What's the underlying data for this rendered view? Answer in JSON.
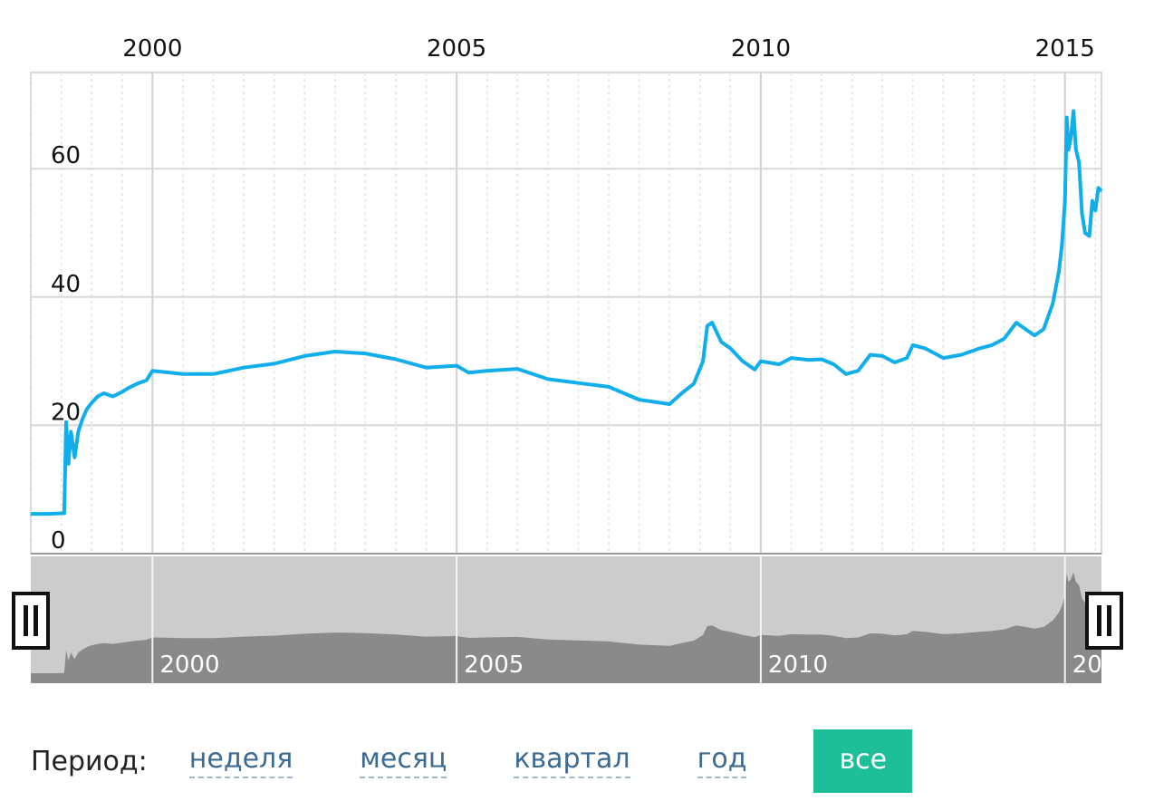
{
  "chart_data": {
    "type": "line",
    "x_ticks": [
      "2000",
      "2005",
      "2010",
      "2015"
    ],
    "y_ticks": [
      0,
      20,
      40,
      60
    ],
    "ylim": [
      0,
      75
    ],
    "xlim": [
      1998.0,
      2015.6
    ],
    "grid": true,
    "series": [
      {
        "color": "#10aeea",
        "points": [
          [
            1998.0,
            6.2
          ],
          [
            1998.3,
            6.2
          ],
          [
            1998.55,
            6.3
          ],
          [
            1998.58,
            20.5
          ],
          [
            1998.62,
            14
          ],
          [
            1998.66,
            19
          ],
          [
            1998.72,
            15
          ],
          [
            1998.78,
            19
          ],
          [
            1998.85,
            21
          ],
          [
            1998.92,
            22.5
          ],
          [
            1999.0,
            23.5
          ],
          [
            1999.1,
            24.5
          ],
          [
            1999.2,
            25
          ],
          [
            1999.35,
            24.5
          ],
          [
            1999.5,
            25.2
          ],
          [
            1999.6,
            25.8
          ],
          [
            1999.75,
            26.5
          ],
          [
            1999.9,
            27
          ],
          [
            2000.0,
            28.5
          ],
          [
            2000.2,
            28.3
          ],
          [
            2000.5,
            28
          ],
          [
            2001.0,
            28
          ],
          [
            2001.5,
            29
          ],
          [
            2002.0,
            29.6
          ],
          [
            2002.5,
            30.8
          ],
          [
            2003.0,
            31.5
          ],
          [
            2003.5,
            31.2
          ],
          [
            2004.0,
            30.3
          ],
          [
            2004.5,
            29
          ],
          [
            2005.0,
            29.3
          ],
          [
            2005.2,
            28.2
          ],
          [
            2005.5,
            28.5
          ],
          [
            2006.0,
            28.8
          ],
          [
            2006.5,
            27.2
          ],
          [
            2007.0,
            26.6
          ],
          [
            2007.5,
            26
          ],
          [
            2008.0,
            24
          ],
          [
            2008.5,
            23.3
          ],
          [
            2008.7,
            25
          ],
          [
            2008.9,
            26.5
          ],
          [
            2009.05,
            30
          ],
          [
            2009.12,
            35.5
          ],
          [
            2009.2,
            36
          ],
          [
            2009.35,
            33
          ],
          [
            2009.5,
            32
          ],
          [
            2009.7,
            30
          ],
          [
            2009.9,
            28.7
          ],
          [
            2010.0,
            30
          ],
          [
            2010.3,
            29.5
          ],
          [
            2010.5,
            30.5
          ],
          [
            2010.8,
            30.2
          ],
          [
            2011.0,
            30.3
          ],
          [
            2011.2,
            29.5
          ],
          [
            2011.4,
            28
          ],
          [
            2011.6,
            28.5
          ],
          [
            2011.8,
            31
          ],
          [
            2012.0,
            30.8
          ],
          [
            2012.2,
            29.8
          ],
          [
            2012.4,
            30.5
          ],
          [
            2012.5,
            32.5
          ],
          [
            2012.7,
            32
          ],
          [
            2012.9,
            31
          ],
          [
            2013.0,
            30.5
          ],
          [
            2013.3,
            31
          ],
          [
            2013.6,
            32
          ],
          [
            2013.8,
            32.5
          ],
          [
            2014.0,
            33.5
          ],
          [
            2014.2,
            36
          ],
          [
            2014.35,
            35
          ],
          [
            2014.5,
            34
          ],
          [
            2014.65,
            35
          ],
          [
            2014.8,
            39
          ],
          [
            2014.9,
            44
          ],
          [
            2014.95,
            48
          ],
          [
            2015.0,
            55
          ],
          [
            2015.03,
            68
          ],
          [
            2015.06,
            63
          ],
          [
            2015.1,
            65
          ],
          [
            2015.14,
            69
          ],
          [
            2015.18,
            63
          ],
          [
            2015.23,
            61
          ],
          [
            2015.28,
            53
          ],
          [
            2015.33,
            50
          ],
          [
            2015.4,
            49.5
          ],
          [
            2015.45,
            55
          ],
          [
            2015.5,
            53.5
          ],
          [
            2015.55,
            57
          ],
          [
            2015.6,
            56.5
          ]
        ]
      }
    ]
  },
  "period": {
    "label": "Период:",
    "options": [
      "неделя",
      "месяц",
      "квартал",
      "год"
    ],
    "active": "все"
  }
}
